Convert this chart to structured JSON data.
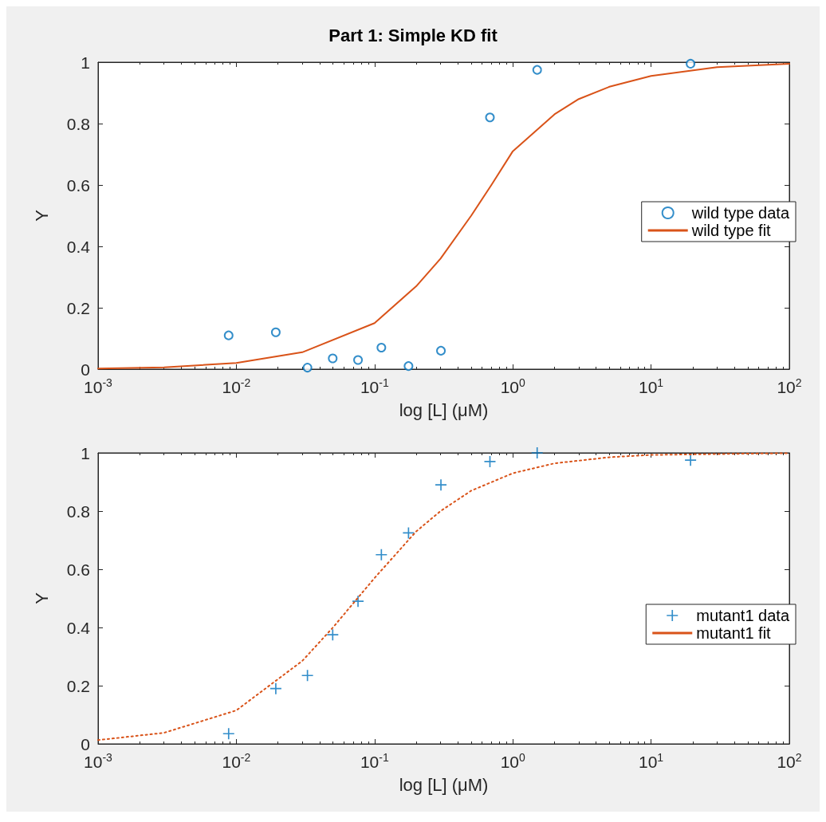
{
  "chart_data": [
    {
      "type": "scatter",
      "title": "Part 1: Simple KD fit",
      "xlabel": "log [L] (μM)",
      "ylabel": "Y",
      "log": "x",
      "grid": false,
      "legend": "right",
      "xlim": [
        0.001,
        100
      ],
      "xticks": [
        {
          "value": 0.001,
          "label": "10$^{-3}$"
        },
        {
          "value": 0.01,
          "label": "10$^{-2}$"
        },
        {
          "value": 0.1,
          "label": "10$^{-1}$"
        },
        {
          "value": 1,
          "label": "10$^{0}$"
        },
        {
          "value": 10,
          "label": "10$^{1}$"
        },
        {
          "value": 100,
          "label": "10$^{2}$"
        }
      ],
      "ylim": [
        0,
        1
      ],
      "yticks": [
        0,
        0.2,
        0.4,
        0.6,
        0.8,
        1
      ],
      "series": [
        {
          "name": "wild type data",
          "marker": "circle",
          "color": "#0072bd",
          "x": [
            0.0088,
            0.0193,
            0.0327,
            0.0498,
            0.0759,
            0.112,
            0.176,
            0.302,
            0.683,
            1.5,
            19.3
          ],
          "values": [
            0.11,
            0.12,
            0.005,
            0.035,
            0.03,
            0.07,
            0.01,
            0.06,
            0.82,
            0.975,
            0.995
          ]
        },
        {
          "name": "wild type fit",
          "type": "line",
          "marker": "none",
          "line_style": "solid",
          "color": "#d95319",
          "x": [
            0.001,
            0.003,
            0.01,
            0.03,
            0.1,
            0.2,
            0.3,
            0.5,
            0.7,
            1,
            2,
            3,
            5,
            10,
            30,
            100
          ],
          "values": [
            0.002,
            0.006,
            0.02,
            0.055,
            0.15,
            0.27,
            0.36,
            0.5,
            0.6,
            0.71,
            0.83,
            0.88,
            0.92,
            0.955,
            0.984,
            0.995
          ]
        }
      ]
    },
    {
      "type": "scatter",
      "xlabel": "log [L] (μM)",
      "ylabel": "Y",
      "log": "x",
      "grid": false,
      "legend": "right",
      "xlim": [
        0.001,
        100
      ],
      "xticks": [
        {
          "value": 0.001,
          "label": "10$^{-3}$"
        },
        {
          "value": 0.01,
          "label": "10$^{-2}$"
        },
        {
          "value": 0.1,
          "label": "10$^{-1}$"
        },
        {
          "value": 1,
          "label": "10$^{0}$"
        },
        {
          "value": 10,
          "label": "10$^{1}$"
        },
        {
          "value": 100,
          "label": "10$^{2}$"
        }
      ],
      "ylim": [
        0,
        1
      ],
      "yticks": [
        0,
        0.2,
        0.4,
        0.6,
        0.8,
        1
      ],
      "series": [
        {
          "name": "mutant1 data",
          "marker": "cross",
          "color": "#0072bd",
          "x": [
            0.0088,
            0.0193,
            0.0327,
            0.0498,
            0.0759,
            0.112,
            0.176,
            0.302,
            0.683,
            1.5,
            19.3
          ],
          "values": [
            0.035,
            0.19,
            0.235,
            0.375,
            0.49,
            0.65,
            0.725,
            0.89,
            0.97,
            1.0,
            0.975
          ]
        },
        {
          "name": "mutant1 fit",
          "type": "line",
          "marker": "none",
          "line_style": "dotted",
          "color": "#d95319",
          "x": [
            0.001,
            0.003,
            0.01,
            0.03,
            0.05,
            0.1,
            0.2,
            0.3,
            0.5,
            1,
            2,
            5,
            10,
            100
          ],
          "values": [
            0.013,
            0.038,
            0.115,
            0.285,
            0.4,
            0.57,
            0.73,
            0.8,
            0.87,
            0.93,
            0.964,
            0.985,
            0.993,
            0.999
          ]
        }
      ]
    }
  ]
}
